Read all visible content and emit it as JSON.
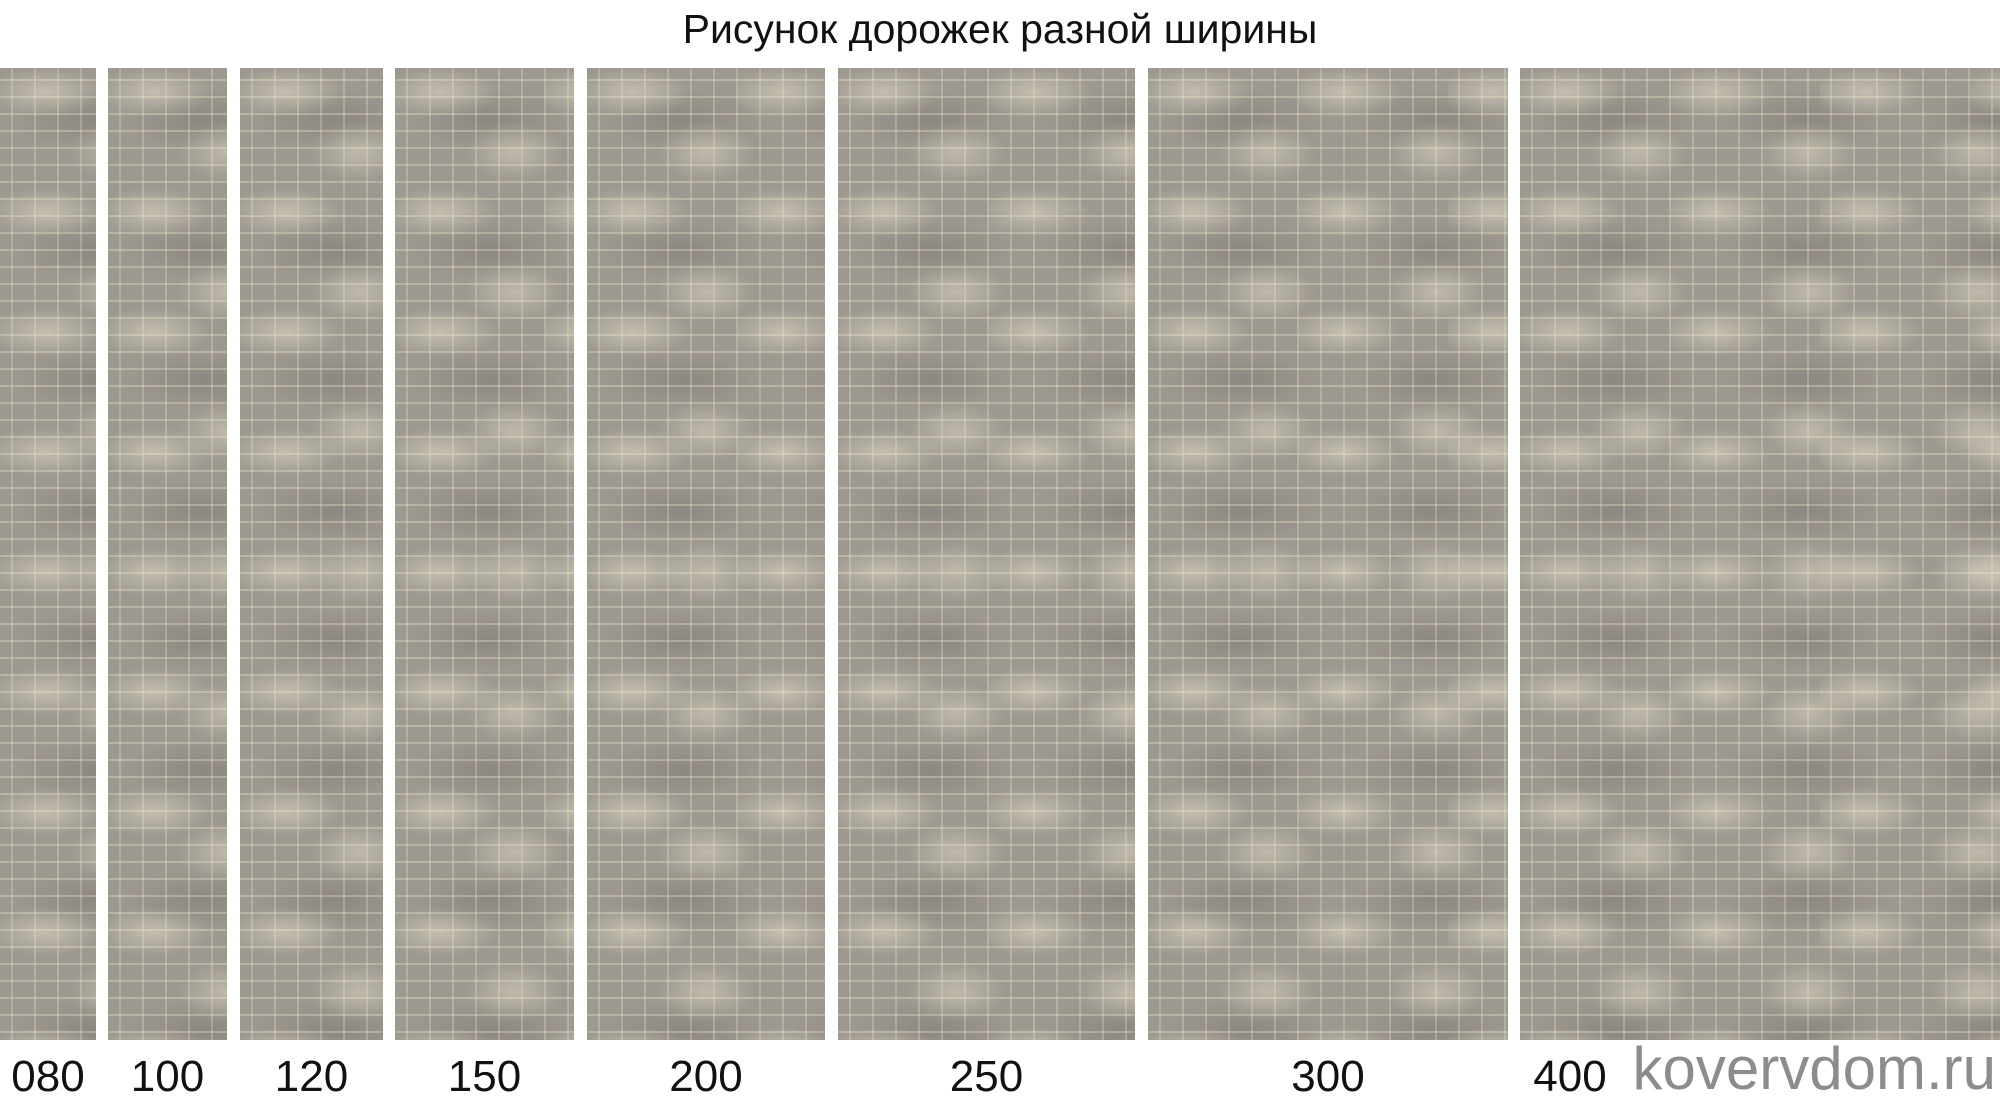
{
  "title": "Рисунок дорожек разной ширины",
  "panels": [
    {
      "label": "080"
    },
    {
      "label": "100"
    },
    {
      "label": "120"
    },
    {
      "label": "150"
    },
    {
      "label": "200"
    },
    {
      "label": "250"
    },
    {
      "label": "300"
    },
    {
      "label": "400"
    }
  ],
  "watermark": "kovervdom.ru",
  "colors": {
    "rug": "#9d9890",
    "watermark": "#8c8c8c"
  }
}
